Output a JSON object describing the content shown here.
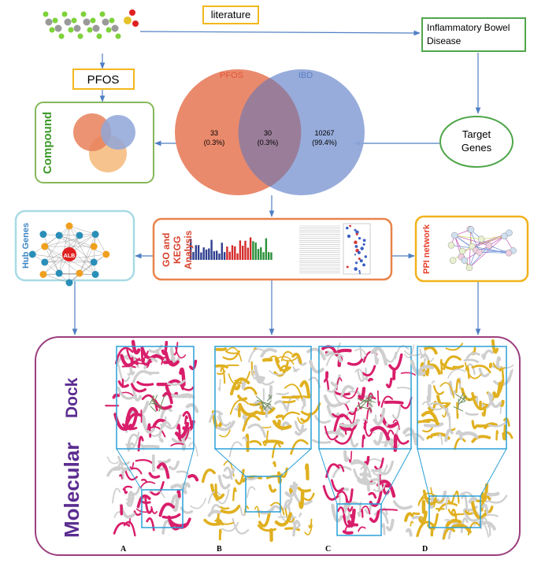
{
  "top": {
    "literature": "literature",
    "disease": "Inflammatory Bowel Disease",
    "pfos": "PFOS",
    "target": "Target Genes"
  },
  "compound": {
    "title": "Compound"
  },
  "venn": {
    "left_label": "PFOS",
    "right_label": "IBD",
    "left_count": "33",
    "left_pct": "(0.3%)",
    "overlap_count": "30",
    "overlap_pct": "(0.3%)",
    "right_count": "10267",
    "right_pct": "(99.4%)"
  },
  "panels": {
    "hub": "Hub Genes",
    "hub_center": "ALB",
    "go": "GO and KEGG Analysis",
    "ppi": "PPI network"
  },
  "docking": {
    "word1": "Molecular",
    "word2": "Dock",
    "labels": [
      "A",
      "B",
      "C",
      "D"
    ]
  }
}
